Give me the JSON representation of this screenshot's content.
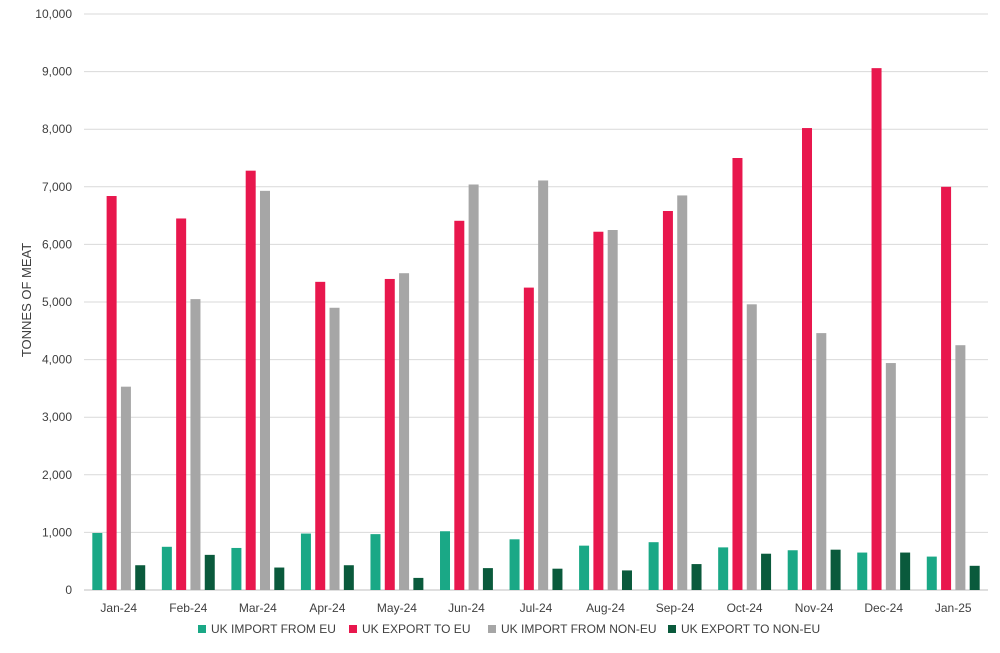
{
  "chart_data": {
    "type": "bar",
    "title": "",
    "xlabel": "",
    "ylabel": "TONNES OF MEAT",
    "ylim": [
      0,
      10000
    ],
    "yticks": [
      "0",
      "1,000",
      "2,000",
      "3,000",
      "4,000",
      "5,000",
      "6,000",
      "7,000",
      "8,000",
      "9,000",
      "10,000"
    ],
    "grid": true,
    "legend_position": "bottom",
    "categories": [
      "Jan-24",
      "Feb-24",
      "Mar-24",
      "Apr-24",
      "May-24",
      "Jun-24",
      "Jul-24",
      "Aug-24",
      "Sep-24",
      "Oct-24",
      "Nov-24",
      "Dec-24",
      "Jan-25"
    ],
    "series": [
      {
        "name": "UK IMPORT FROM EU",
        "color": "#1aa886",
        "values": [
          990,
          750,
          730,
          980,
          970,
          1020,
          880,
          770,
          830,
          740,
          690,
          650,
          580
        ]
      },
      {
        "name": "UK EXPORT TO EU",
        "color": "#e8174d",
        "values": [
          6840,
          6450,
          7280,
          5350,
          5400,
          6410,
          5250,
          6220,
          6580,
          7500,
          8020,
          9060,
          7000
        ]
      },
      {
        "name": "UK IMPORT FROM NON-EU",
        "color": "#a6a6a6",
        "values": [
          3530,
          5050,
          6930,
          4900,
          5500,
          7040,
          7110,
          6250,
          6850,
          4960,
          4460,
          3940,
          4250
        ]
      },
      {
        "name": "UK EXPORT TO NON-EU",
        "color": "#0a5a3c",
        "values": [
          430,
          610,
          390,
          430,
          210,
          380,
          370,
          340,
          450,
          630,
          700,
          650,
          420
        ]
      }
    ]
  }
}
